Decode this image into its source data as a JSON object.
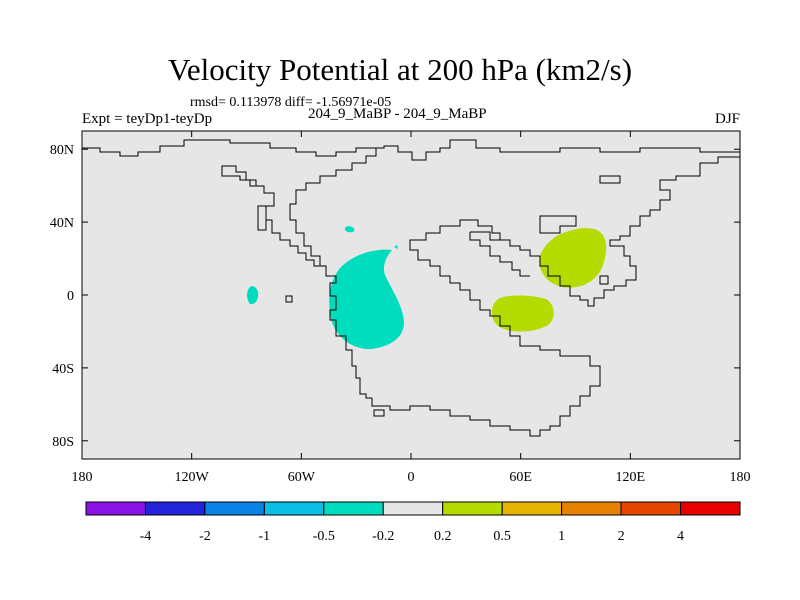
{
  "title": "Velocity Potential at 200 hPa (km2/s)",
  "stats": "rmsd= 0.113978 diff= -1.56971e-05",
  "left_label": "Expt = teyDp1-teyDp",
  "center_label": "204_9_MaBP - 204_9_MaBP",
  "right_label": "DJF",
  "map": {
    "x_ticks": [
      {
        "lon": -180,
        "label": "180"
      },
      {
        "lon": -120,
        "label": "120W"
      },
      {
        "lon": -60,
        "label": "60W"
      },
      {
        "lon": 0,
        "label": "0"
      },
      {
        "lon": 60,
        "label": "60E"
      },
      {
        "lon": 120,
        "label": "120E"
      },
      {
        "lon": 180,
        "label": "180"
      }
    ],
    "y_ticks": [
      {
        "lat": 80,
        "label": "80N"
      },
      {
        "lat": 40,
        "label": "40N"
      },
      {
        "lat": 0,
        "label": "0"
      },
      {
        "lat": -40,
        "label": "40S"
      },
      {
        "lat": -80,
        "label": "80S"
      }
    ],
    "background_color": "#e6e6e6"
  },
  "colorbar": {
    "colors": [
      "#8a14e6",
      "#2323dc",
      "#0a82e6",
      "#0abee6",
      "#00dcbe",
      "#e6e6e6",
      "#b4dc00",
      "#e6b400",
      "#e68200",
      "#e64600",
      "#e60000"
    ],
    "labels": [
      "-4",
      "-2",
      "-1",
      "-0.5",
      "-0.2",
      "0.2",
      "0.5",
      "1",
      "2",
      "4"
    ]
  }
}
